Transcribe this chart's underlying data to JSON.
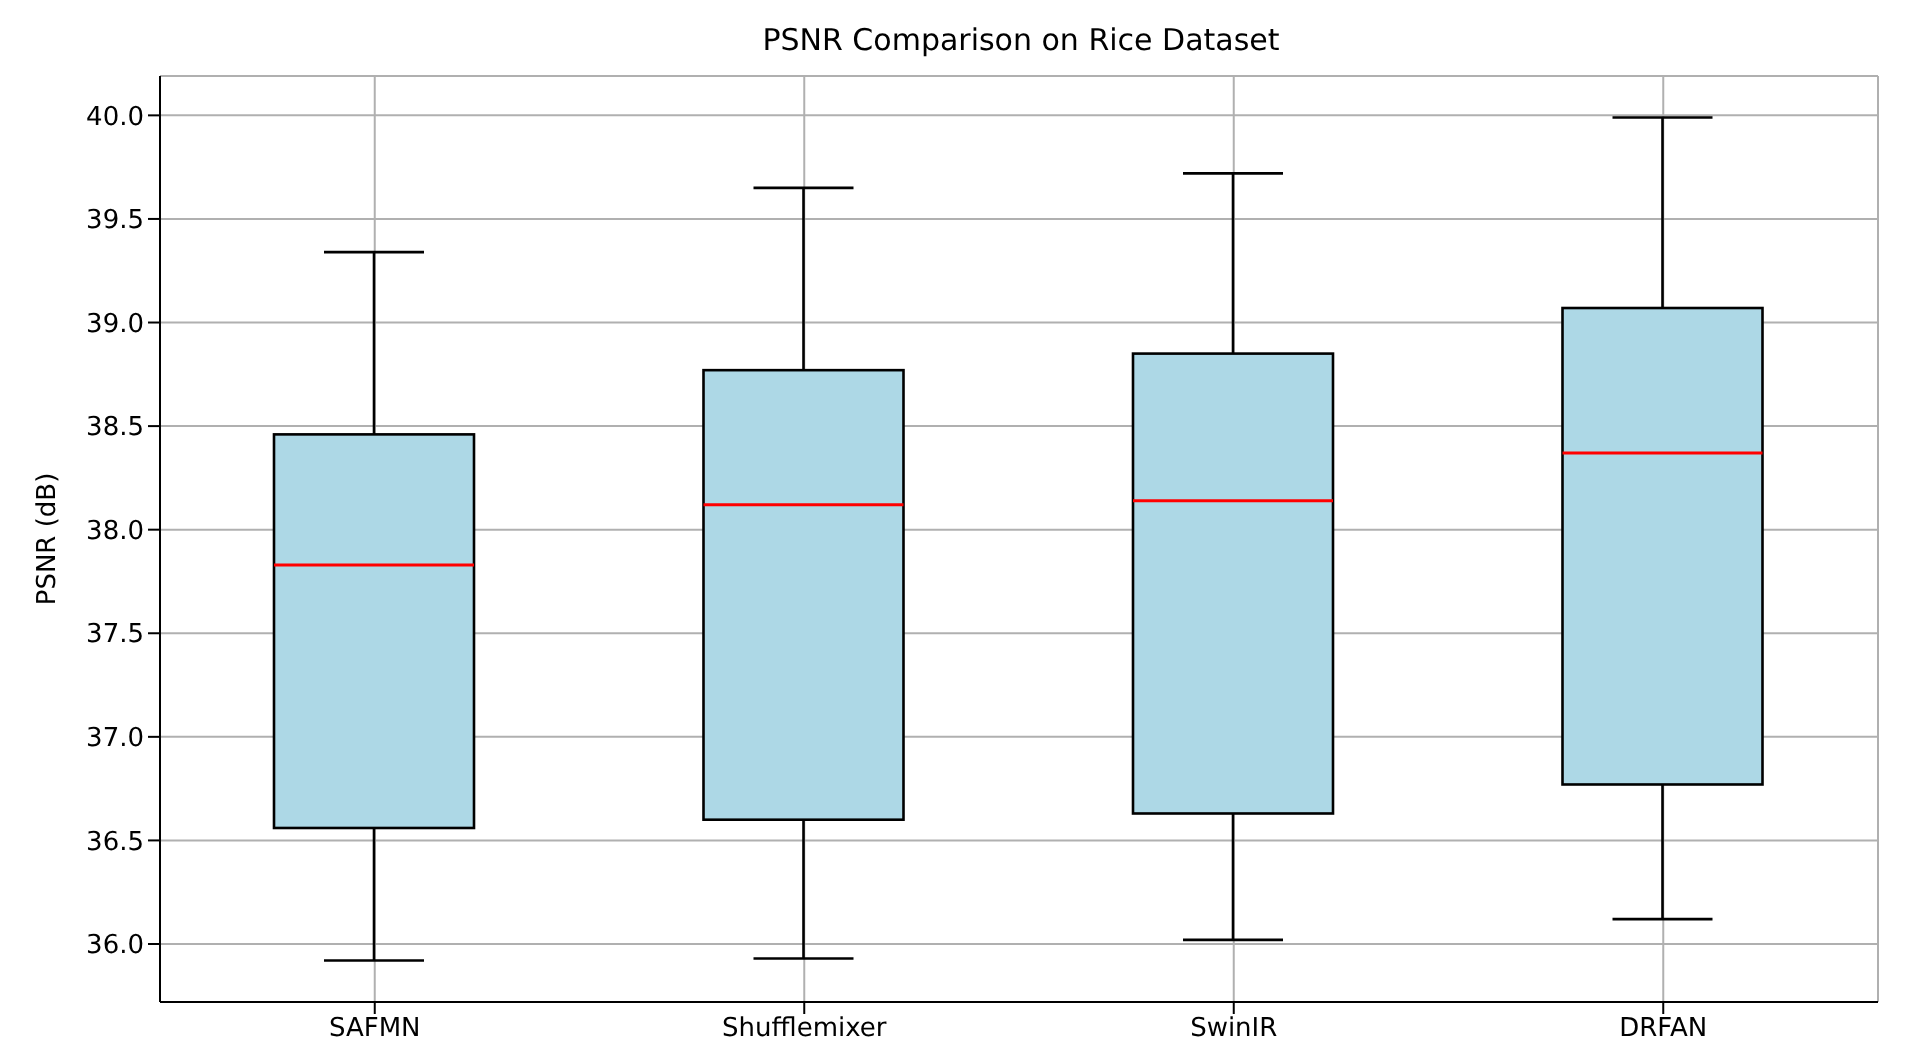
{
  "chart_data": {
    "type": "box",
    "title": "PSNR Comparison on Rice Dataset",
    "ylabel": "PSNR (dB)",
    "categories": [
      "SAFMN",
      "Shufflemixer",
      "SwinIR",
      "DRFAN"
    ],
    "series": [
      {
        "color": "#add8e6",
        "boxes": [
          {
            "low": 35.92,
            "q1": 36.56,
            "median": 37.83,
            "q3": 38.46,
            "high": 39.34
          },
          {
            "low": 35.93,
            "q1": 36.6,
            "median": 38.12,
            "q3": 38.77,
            "high": 39.65
          },
          {
            "low": 36.02,
            "q1": 36.63,
            "median": 38.14,
            "q3": 38.85,
            "high": 39.72
          },
          {
            "low": 36.12,
            "q1": 36.77,
            "median": 38.37,
            "q3": 39.07,
            "high": 39.99
          }
        ]
      }
    ],
    "ylim": [
      35.72,
      40.19
    ],
    "yticks": [
      {
        "value": 36,
        "label": "36.0"
      },
      {
        "value": 36.5,
        "label": "36.5"
      },
      {
        "value": 37,
        "label": "37.0"
      },
      {
        "value": 37.5,
        "label": "37.5"
      },
      {
        "value": 38,
        "label": "38.0"
      },
      {
        "value": 38.5,
        "label": "38.5"
      },
      {
        "value": 39,
        "label": "39.0"
      },
      {
        "value": 39.5,
        "label": "39.5"
      },
      {
        "value": 40,
        "label": "40.0"
      }
    ],
    "grid": true
  }
}
